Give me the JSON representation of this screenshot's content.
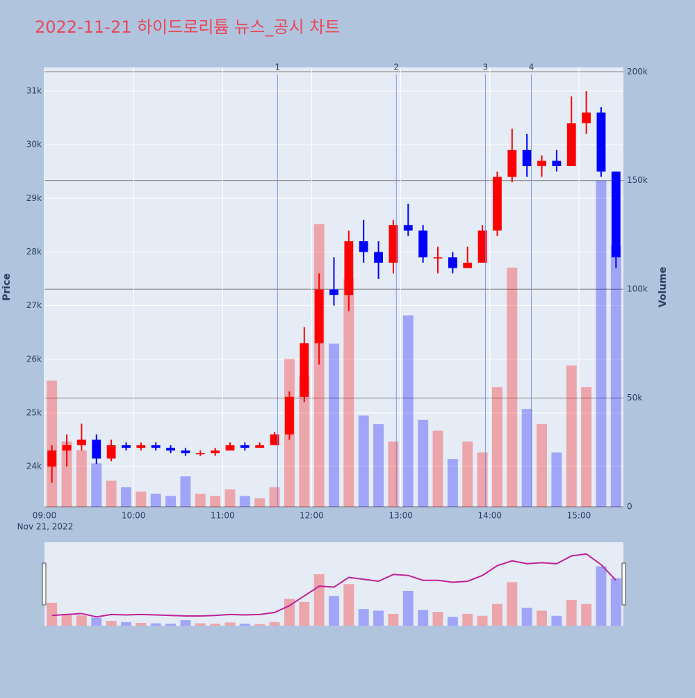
{
  "chart_data": {
    "type": "candlestick",
    "title": "2022-11-21 하이드로리튬 뉴스_공시 차트",
    "y_label": "Price",
    "y2_label": "Volume",
    "x_date_label": "Nov 21, 2022",
    "increasing_color": "#ff0000",
    "decreasing_color": "#0000ff",
    "x": [
      "09:00",
      "09:10",
      "09:20",
      "09:30",
      "09:40",
      "09:50",
      "10:00",
      "10:10",
      "10:20",
      "10:30",
      "10:40",
      "10:50",
      "11:00",
      "11:10",
      "11:20",
      "11:30",
      "11:40",
      "11:50",
      "12:00",
      "12:10",
      "12:20",
      "12:30",
      "12:40",
      "12:50",
      "13:00",
      "13:10",
      "13:20",
      "13:30",
      "13:40",
      "13:50",
      "14:00",
      "14:10",
      "14:20",
      "14:30",
      "14:40",
      "14:50",
      "15:00",
      "15:10",
      "15:20"
    ],
    "open": [
      24000,
      24300,
      24400,
      24500,
      24150,
      24400,
      24350,
      24400,
      24350,
      24300,
      24250,
      24250,
      24300,
      24400,
      24350,
      24400,
      24600,
      25300,
      26300,
      27300,
      27200,
      28200,
      28000,
      27800,
      28500,
      28400,
      27900,
      27900,
      27700,
      27800,
      28400,
      29400,
      29900,
      29600,
      29700,
      29600,
      30400,
      30600,
      29500
    ],
    "high": [
      24400,
      24600,
      24800,
      24600,
      24500,
      24450,
      24450,
      24450,
      24400,
      24350,
      24300,
      24350,
      24450,
      24450,
      24450,
      24650,
      25400,
      26600,
      27600,
      27900,
      28400,
      28600,
      28200,
      28600,
      28900,
      28500,
      28100,
      28000,
      28100,
      28500,
      29500,
      30300,
      30200,
      29800,
      29900,
      30900,
      31000,
      30700,
      29500
    ],
    "low": [
      23700,
      24000,
      24300,
      24050,
      24100,
      24300,
      24300,
      24300,
      24250,
      24200,
      24200,
      24200,
      24300,
      24300,
      24350,
      24400,
      24500,
      25200,
      25900,
      27000,
      26900,
      27800,
      27500,
      27600,
      28300,
      27800,
      27600,
      27600,
      27700,
      27800,
      28300,
      29300,
      29400,
      29400,
      29500,
      29600,
      30200,
      29400,
      27700
    ],
    "close": [
      24300,
      24400,
      24500,
      24150,
      24400,
      24350,
      24400,
      24350,
      24300,
      24250,
      24250,
      24300,
      24400,
      24350,
      24400,
      24600,
      25300,
      26300,
      27300,
      27200,
      28200,
      28000,
      27800,
      28500,
      28400,
      27900,
      27900,
      27700,
      27800,
      28400,
      29400,
      29900,
      29600,
      29700,
      29600,
      30400,
      30600,
      29500,
      27900
    ],
    "volume": [
      58000,
      30000,
      26000,
      20000,
      12000,
      9000,
      7000,
      6000,
      5000,
      14000,
      6000,
      5000,
      8000,
      5000,
      4000,
      9000,
      68000,
      60000,
      130000,
      75000,
      105000,
      42000,
      38000,
      30000,
      88000,
      40000,
      35000,
      22000,
      30000,
      25000,
      55000,
      110000,
      45000,
      38000,
      25000,
      65000,
      55000,
      150000,
      120000
    ],
    "xlim": [
      "09:00",
      "15:30"
    ],
    "xticks": [
      "09:00",
      "10:00",
      "11:00",
      "12:00",
      "13:00",
      "14:00",
      "15:00"
    ],
    "ylim": [
      23250,
      31440
    ],
    "yticks": [
      {
        "value": 24000,
        "label": "24k"
      },
      {
        "value": 25000,
        "label": "25k"
      },
      {
        "value": 26000,
        "label": "26k"
      },
      {
        "value": 27000,
        "label": "27k"
      },
      {
        "value": 28000,
        "label": "28k"
      },
      {
        "value": 29000,
        "label": "29k"
      },
      {
        "value": 30000,
        "label": "30k"
      },
      {
        "value": 31000,
        "label": "31k"
      }
    ],
    "y2lim": [
      0,
      202000
    ],
    "y2ticks": [
      0,
      {
        "value": 50000,
        "label": "50k"
      },
      {
        "value": 100000,
        "label": "100k"
      },
      {
        "value": 150000,
        "label": "150k"
      },
      {
        "value": 200000,
        "label": "200k"
      }
    ],
    "news": [
      {
        "x": "11:37",
        "label": "1"
      },
      {
        "x": "12:57",
        "label": "2"
      },
      {
        "x": "13:57",
        "label": "3"
      },
      {
        "x": "14:28",
        "label": "4"
      }
    ]
  }
}
